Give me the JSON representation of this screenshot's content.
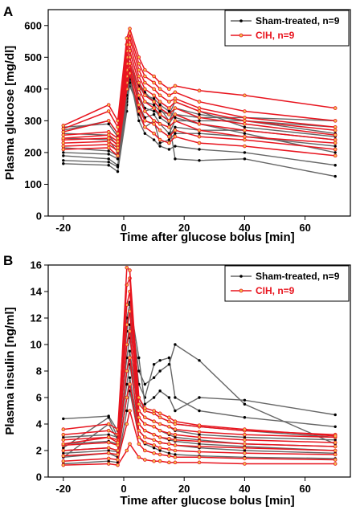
{
  "colors": {
    "sham": "#666666",
    "sham_marker": "#000000",
    "cih": "#e8141e",
    "cih_marker": "#f2c14e"
  },
  "chart_data": [
    {
      "type": "line",
      "panel_label": "A",
      "xlabel": "Time after glucose bolus [min]",
      "ylabel": "Plasma glucose [mg/dl]",
      "xlim": [
        -25,
        75
      ],
      "ylim": [
        0,
        650
      ],
      "xticks": [
        -20,
        0,
        20,
        40,
        60
      ],
      "yticks": [
        0,
        100,
        200,
        300,
        400,
        500,
        600
      ],
      "grid": false,
      "legend": {
        "position": "top-right",
        "entries": [
          "Sham-treated, n=9",
          "CIH, n=9"
        ]
      },
      "x": [
        -20,
        -5,
        -2,
        1,
        2,
        5,
        7,
        10,
        12,
        15,
        17,
        25,
        40,
        70
      ],
      "series": [
        {
          "name": "Sham-treated, n=9",
          "group": "sham",
          "lines": [
            [
              165,
              160,
              140,
              330,
              440,
              300,
              260,
              240,
              220,
              210,
              220,
              210,
              200,
              160
            ],
            [
              175,
              170,
              155,
              350,
              430,
              320,
              280,
              300,
              230,
              240,
              260,
              260,
              250,
              220
            ],
            [
              190,
              180,
              160,
              360,
              410,
              340,
              300,
              290,
              270,
              250,
              280,
              270,
              270,
              240
            ],
            [
              200,
              195,
              180,
              370,
              420,
              350,
              310,
              320,
              290,
              260,
              300,
              300,
              300,
              280
            ],
            [
              215,
              205,
              190,
              380,
              450,
              370,
              330,
              340,
              310,
              290,
              320,
              310,
              310,
              300
            ],
            [
              245,
              240,
              200,
              400,
              460,
              380,
              340,
              330,
              320,
              300,
              340,
              320,
              300,
              260
            ],
            [
              260,
              255,
              220,
              420,
              480,
              400,
              360,
              350,
              330,
              320,
              360,
              330,
              280,
              250
            ],
            [
              270,
              300,
              260,
              440,
              470,
              410,
              380,
              370,
              350,
              330,
              310,
              290,
              260,
              200
            ],
            [
              280,
              290,
              250,
              460,
              520,
              420,
              390,
              360,
              340,
              300,
              180,
              175,
              180,
              125
            ]
          ]
        },
        {
          "name": "CIH, n=9",
          "group": "cih",
          "lines": [
            [
              210,
              215,
              190,
              400,
              450,
              330,
              280,
              260,
              240,
              230,
              250,
              230,
              220,
              190
            ],
            [
              220,
              225,
              205,
              420,
              470,
              350,
              300,
              290,
              270,
              250,
              270,
              250,
              240,
              210
            ],
            [
              230,
              235,
              215,
              440,
              480,
              380,
              330,
              300,
              290,
              280,
              300,
              270,
              250,
              230
            ],
            [
              240,
              245,
              225,
              460,
              500,
              400,
              360,
              340,
              320,
              300,
              320,
              290,
              270,
              240
            ],
            [
              245,
              255,
              235,
              480,
              520,
              420,
              380,
              360,
              340,
              320,
              340,
              310,
              290,
              255
            ],
            [
              255,
              265,
              245,
              500,
              540,
              440,
              400,
              380,
              360,
              340,
              360,
              330,
              300,
              270
            ],
            [
              265,
              300,
              260,
              520,
              560,
              460,
              420,
              400,
              380,
              360,
              370,
              340,
              310,
              280
            ],
            [
              275,
              330,
              280,
              540,
              575,
              480,
              440,
              420,
              400,
              380,
              390,
              360,
              330,
              300
            ],
            [
              285,
              350,
              300,
              560,
              590,
              500,
              460,
              440,
              420,
              400,
              410,
              395,
              380,
              340
            ]
          ]
        }
      ]
    },
    {
      "type": "line",
      "panel_label": "B",
      "xlabel": "Time after glucose bolus [min]",
      "ylabel": "Plasma insulin [ng/ml]",
      "xlim": [
        -25,
        75
      ],
      "ylim": [
        0,
        16
      ],
      "xticks": [
        -20,
        0,
        20,
        40,
        60
      ],
      "yticks": [
        0,
        2,
        4,
        6,
        8,
        10,
        12,
        14,
        16
      ],
      "grid": false,
      "legend": {
        "position": "top-right",
        "entries": [
          "Sham-treated, n=9",
          "CIH, n=9"
        ]
      },
      "x": [
        -20,
        -5,
        -2,
        1,
        2,
        5,
        7,
        10,
        12,
        15,
        17,
        25,
        40,
        70
      ],
      "series": [
        {
          "name": "Sham-treated, n=9",
          "group": "sham",
          "lines": [
            [
              1.0,
              1.2,
              1.1,
              5.0,
              6.5,
              3.0,
              2.5,
              2.2,
              2.0,
              1.8,
              1.7,
              1.6,
              1.5,
              1.4
            ],
            [
              1.5,
              1.8,
              1.5,
              6.0,
              7.5,
              3.5,
              3.0,
              2.8,
              2.6,
              2.5,
              2.4,
              2.2,
              2.0,
              1.8
            ],
            [
              2.0,
              2.2,
              2.0,
              7.0,
              8.5,
              4.0,
              3.5,
              3.2,
              3.0,
              2.8,
              2.7,
              2.5,
              2.3,
              2.0
            ],
            [
              2.5,
              2.7,
              2.5,
              8.0,
              9.5,
              4.5,
              4.0,
              3.8,
              3.5,
              3.2,
              3.0,
              2.8,
              2.5,
              2.3
            ],
            [
              3.0,
              3.2,
              3.0,
              9.0,
              10.5,
              5.0,
              4.5,
              4.2,
              4.0,
              3.8,
              3.5,
              3.2,
              3.0,
              2.8
            ],
            [
              1.8,
              2.0,
              1.9,
              10.0,
              11.5,
              6.0,
              5.0,
              4.8,
              4.5,
              4.2,
              4.0,
              3.8,
              3.5,
              3.0
            ],
            [
              4.4,
              4.6,
              3.5,
              11.0,
              12.5,
              7.0,
              6.0,
              8.5,
              8.8,
              9.0,
              6.0,
              5.0,
              4.5,
              3.8
            ],
            [
              2.2,
              4.5,
              3.0,
              12.0,
              13.0,
              8.0,
              7.0,
              7.5,
              8.0,
              8.5,
              10.0,
              8.8,
              5.5,
              2.5
            ],
            [
              1.5,
              4.0,
              2.8,
              13.0,
              13.2,
              9.0,
              5.5,
              6.0,
              6.5,
              6.0,
              5.0,
              6.0,
              5.8,
              4.7
            ]
          ]
        },
        {
          "name": "CIH, n=9",
          "group": "cih",
          "lines": [
            [
              0.9,
              1.0,
              0.9,
              2.0,
              2.5,
              1.5,
              1.3,
              1.2,
              1.2,
              1.1,
              1.1,
              1.1,
              1.0,
              1.0
            ],
            [
              1.2,
              1.4,
              1.3,
              4.0,
              5.0,
              2.5,
              2.0,
              1.8,
              1.7,
              1.6,
              1.5,
              1.5,
              1.4,
              1.3
            ],
            [
              1.6,
              1.8,
              1.7,
              6.0,
              7.0,
              3.0,
              2.6,
              2.4,
              2.2,
              2.1,
              2.0,
              1.9,
              1.8,
              1.7
            ],
            [
              2.0,
              2.2,
              2.0,
              8.0,
              9.0,
              3.5,
              3.0,
              2.8,
              2.6,
              2.5,
              2.4,
              2.3,
              2.2,
              2.0
            ],
            [
              2.4,
              2.6,
              2.4,
              10.0,
              11.0,
              4.0,
              3.5,
              3.2,
              3.0,
              2.9,
              2.8,
              2.7,
              2.5,
              2.3
            ],
            [
              2.8,
              3.0,
              2.8,
              11.5,
              12.5,
              4.5,
              4.0,
              3.8,
              3.5,
              3.3,
              3.2,
              3.0,
              2.8,
              2.6
            ],
            [
              3.2,
              3.5,
              3.2,
              13.0,
              14.0,
              5.0,
              4.5,
              4.2,
              4.0,
              3.8,
              3.6,
              3.4,
              3.2,
              3.0
            ],
            [
              3.6,
              4.0,
              3.6,
              14.5,
              15.0,
              5.5,
              5.0,
              4.8,
              4.5,
              4.2,
              4.0,
              3.8,
              3.5,
              3.2
            ],
            [
              2.5,
              3.0,
              2.6,
              15.8,
              15.6,
              6.0,
              5.2,
              5.0,
              4.8,
              4.5,
              4.2,
              3.9,
              3.6,
              3.1
            ]
          ]
        }
      ]
    }
  ]
}
